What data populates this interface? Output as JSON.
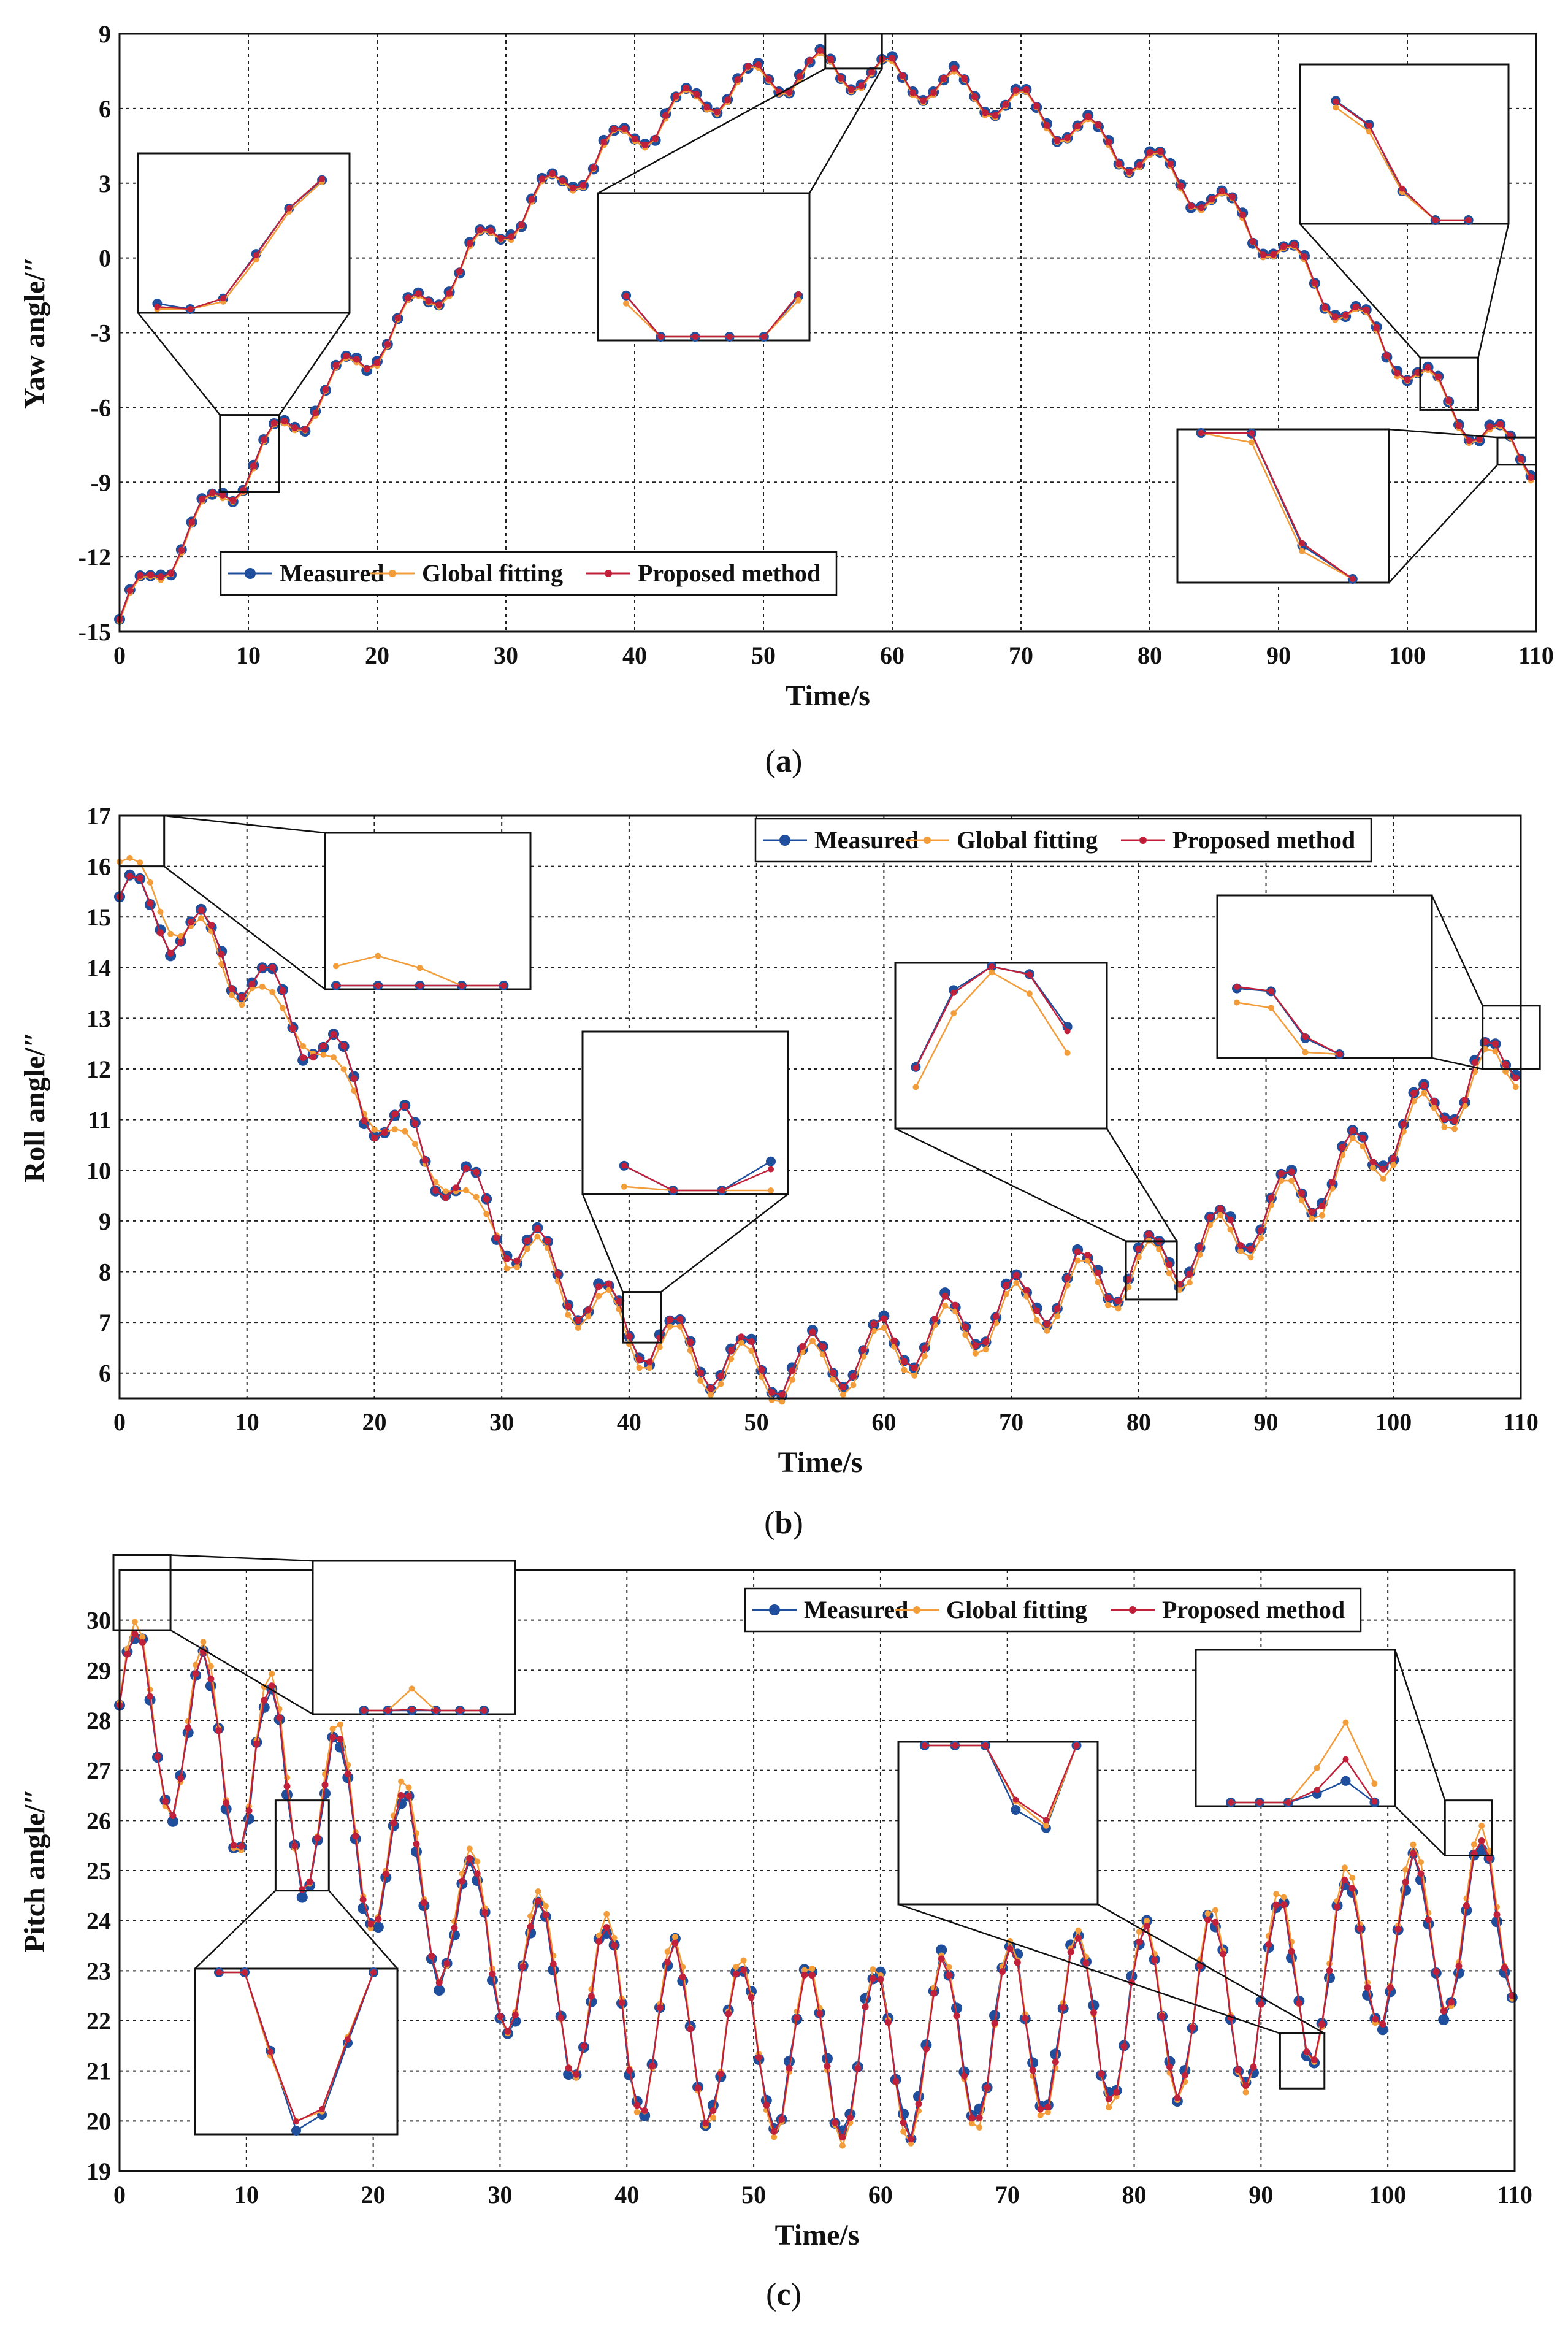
{
  "colors": {
    "measured": "#1f4e9c",
    "global_fitting": "#f39c3a",
    "proposed_method": "#c0203a"
  },
  "legend": {
    "measured": "Measured",
    "global_fitting": "Global fitting",
    "proposed_method": "Proposed method"
  },
  "chart_data": [
    {
      "type": "line",
      "caption": "a",
      "xlabel": "Time/s",
      "ylabel": "Yaw angle/″",
      "xlim": [
        0,
        110
      ],
      "ylim": [
        -15,
        9
      ],
      "xticks": [
        0,
        10,
        20,
        30,
        40,
        50,
        60,
        70,
        80,
        90,
        100,
        110
      ],
      "yticks": [
        -15,
        -12,
        -9,
        -6,
        -3,
        0,
        3,
        6,
        9
      ],
      "legend_position": "bottom-left",
      "series_names": [
        "Measured",
        "Global fitting",
        "Proposed method"
      ],
      "model": "trend + sinusoid",
      "trend": {
        "x": [
          0,
          5,
          10,
          15,
          20,
          25,
          30,
          35,
          40,
          45,
          50,
          55,
          60,
          65,
          70,
          75,
          80,
          85,
          90,
          95,
          100,
          105,
          110
        ],
        "y": [
          -14.5,
          -11.2,
          -8.4,
          -5.8,
          -3.5,
          -1.1,
          1.4,
          3.3,
          5.0,
          6.4,
          7.2,
          7.6,
          7.3,
          6.8,
          6.1,
          5.0,
          3.8,
          2.3,
          0.4,
          -2.0,
          -4.3,
          -6.7,
          -8.3
        ]
      },
      "oscillation": {
        "period_s": 5.3,
        "amplitude": 0.75
      },
      "x_range": [
        0,
        110
      ],
      "sample_step_s": 0.8,
      "roi_boxes": [
        [
          7.8,
          -9.4,
          12.4,
          -6.3
        ],
        [
          54.8,
          7.6,
          59.2,
          9.0
        ],
        [
          101.0,
          -6.1,
          105.5,
          -4.0
        ],
        [
          107.0,
          -8.3,
          110.0,
          -7.2
        ]
      ]
    },
    {
      "type": "line",
      "caption": "b",
      "xlabel": "Time/s",
      "ylabel": "Roll angle/″",
      "xlim": [
        0,
        110
      ],
      "ylim": [
        5.5,
        17
      ],
      "xticks": [
        0,
        10,
        20,
        30,
        40,
        50,
        60,
        70,
        80,
        90,
        100,
        110
      ],
      "yticks": [
        6,
        7,
        8,
        9,
        10,
        11,
        12,
        13,
        14,
        15,
        16,
        17
      ],
      "legend_position": "top-right",
      "series_names": [
        "Measured",
        "Global fitting",
        "Proposed method"
      ],
      "model": "trend + sinusoid",
      "trend": {
        "x": [
          0,
          5,
          10,
          15,
          20,
          25,
          30,
          35,
          40,
          45,
          50,
          55,
          60,
          65,
          70,
          75,
          80,
          85,
          90,
          95,
          100,
          105,
          110
        ],
        "y": [
          15.4,
          14.8,
          13.9,
          12.7,
          11.2,
          10.1,
          8.9,
          7.8,
          6.9,
          6.4,
          6.1,
          6.2,
          6.5,
          6.9,
          7.3,
          7.8,
          8.1,
          8.5,
          9.2,
          9.9,
          10.7,
          11.6,
          12.4
        ]
      },
      "oscillation": {
        "period_s": 5.3,
        "amplitude": 0.6
      },
      "global_fitting_offset_start": [
        16.8,
        15.0
      ],
      "x_range": [
        0,
        110
      ],
      "sample_step_s": 0.8,
      "roi_boxes": [
        [
          0,
          16.0,
          3.5,
          17.0
        ],
        [
          39.5,
          6.6,
          42.5,
          7.6
        ],
        [
          79.0,
          7.45,
          83.0,
          8.6
        ],
        [
          107.0,
          12.0,
          111.5,
          13.25
        ]
      ]
    },
    {
      "type": "line",
      "caption": "c",
      "xlabel": "Time/s",
      "ylabel": "Pitch angle/″",
      "xlim": [
        0,
        110
      ],
      "ylim": [
        19,
        31
      ],
      "xticks": [
        0,
        10,
        20,
        30,
        40,
        50,
        60,
        70,
        80,
        90,
        100,
        110
      ],
      "yticks": [
        19,
        20,
        21,
        22,
        23,
        24,
        25,
        26,
        27,
        28,
        29,
        30
      ],
      "legend_position": "top-right",
      "series_names": [
        "Measured",
        "Global fitting",
        "Proposed method"
      ],
      "model": "center + decaying/growing sinusoid",
      "center": {
        "x": [
          0,
          10,
          20,
          30,
          40,
          50,
          60,
          70,
          80,
          90,
          100,
          110
        ],
        "y": [
          28.3,
          27.2,
          25.6,
          23.3,
          22.0,
          21.4,
          21.2,
          21.7,
          22.1,
          22.5,
          23.6,
          24.2
        ]
      },
      "amplitude": {
        "x": [
          0,
          10,
          20,
          30,
          40,
          50,
          60,
          70,
          80,
          90,
          100,
          110
        ],
        "y": [
          1.6,
          1.9,
          1.7,
          1.4,
          1.8,
          1.6,
          1.7,
          1.7,
          1.7,
          1.8,
          1.6,
          1.7
        ]
      },
      "oscillation": {
        "period_s": 5.3
      },
      "x_range": [
        0,
        110
      ],
      "sample_step_s": 0.6,
      "roi_boxes": [
        [
          -1.0,
          29.8,
          3.5,
          31.3
        ],
        [
          12.3,
          24.6,
          16.5,
          26.4
        ],
        [
          91.5,
          20.65,
          95.0,
          21.75
        ],
        [
          104.5,
          25.3,
          108.2,
          26.4
        ]
      ]
    }
  ]
}
